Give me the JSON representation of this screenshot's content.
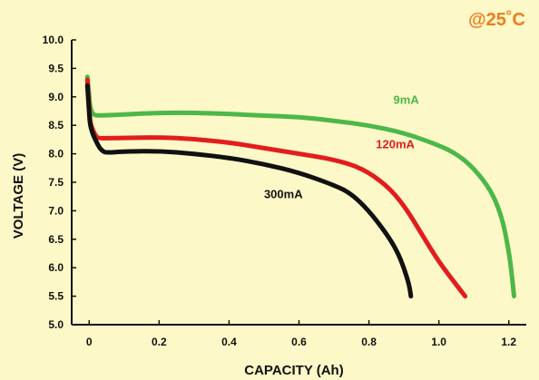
{
  "chart_data": {
    "type": "line",
    "annotation": "@25˚C",
    "xlabel": "CAPACITY (Ah)",
    "ylabel": "VOLTAGE (V)",
    "xlim": [
      -0.05,
      1.25
    ],
    "ylim": [
      5.0,
      10.0
    ],
    "x_ticks": [
      "0",
      "0.2",
      "0.4",
      "0.6",
      "0.8",
      "1.0",
      "1.2"
    ],
    "x_tick_values": [
      0,
      0.2,
      0.4,
      0.6,
      0.8,
      1.0,
      1.2
    ],
    "y_ticks": [
      "5.0",
      "5.5",
      "6.0",
      "6.5",
      "7.0",
      "7.5",
      "8.0",
      "8.5",
      "9.0",
      "9.5",
      "10.0"
    ],
    "y_tick_values": [
      5.0,
      5.5,
      6.0,
      6.5,
      7.0,
      7.5,
      8.0,
      8.5,
      9.0,
      9.5,
      10.0
    ],
    "grid": false,
    "series": [
      {
        "name": "9mA",
        "color": "#4cb848",
        "label_at": [
          0.87,
          8.88
        ],
        "x": [
          -0.005,
          0.0,
          0.003,
          0.008,
          0.015,
          0.03,
          0.1,
          0.2,
          0.3,
          0.4,
          0.5,
          0.6,
          0.7,
          0.8,
          0.9,
          1.0,
          1.05,
          1.1,
          1.15,
          1.18,
          1.2,
          1.21,
          1.215
        ],
        "values": [
          9.35,
          9.0,
          8.82,
          8.72,
          8.68,
          8.67,
          8.69,
          8.72,
          8.72,
          8.7,
          8.67,
          8.65,
          8.58,
          8.5,
          8.37,
          8.15,
          8.0,
          7.75,
          7.35,
          6.9,
          6.3,
          5.8,
          5.5
        ]
      },
      {
        "name": "120mA",
        "color": "#e21d1d",
        "label_at": [
          0.82,
          8.1
        ],
        "x": [
          -0.005,
          0.0,
          0.003,
          0.01,
          0.02,
          0.03,
          0.1,
          0.2,
          0.3,
          0.4,
          0.5,
          0.55,
          0.6,
          0.7,
          0.78,
          0.85,
          0.9,
          0.95,
          1.0,
          1.05,
          1.075
        ],
        "values": [
          9.3,
          8.8,
          8.55,
          8.42,
          8.3,
          8.27,
          8.28,
          8.29,
          8.26,
          8.2,
          8.1,
          8.05,
          8.0,
          7.9,
          7.75,
          7.45,
          7.1,
          6.6,
          6.1,
          5.7,
          5.5
        ]
      },
      {
        "name": "300mA",
        "color": "#111111",
        "label_at": [
          0.5,
          7.22
        ],
        "x": [
          -0.005,
          0.0,
          0.003,
          0.01,
          0.02,
          0.03,
          0.04,
          0.05,
          0.1,
          0.2,
          0.3,
          0.4,
          0.5,
          0.6,
          0.7,
          0.75,
          0.8,
          0.85,
          0.88,
          0.9,
          0.915,
          0.92
        ],
        "values": [
          9.2,
          8.7,
          8.5,
          8.35,
          8.22,
          8.1,
          8.04,
          8.02,
          8.04,
          8.05,
          8.0,
          7.93,
          7.82,
          7.67,
          7.45,
          7.3,
          7.0,
          6.6,
          6.3,
          6.0,
          5.7,
          5.5
        ]
      }
    ]
  }
}
